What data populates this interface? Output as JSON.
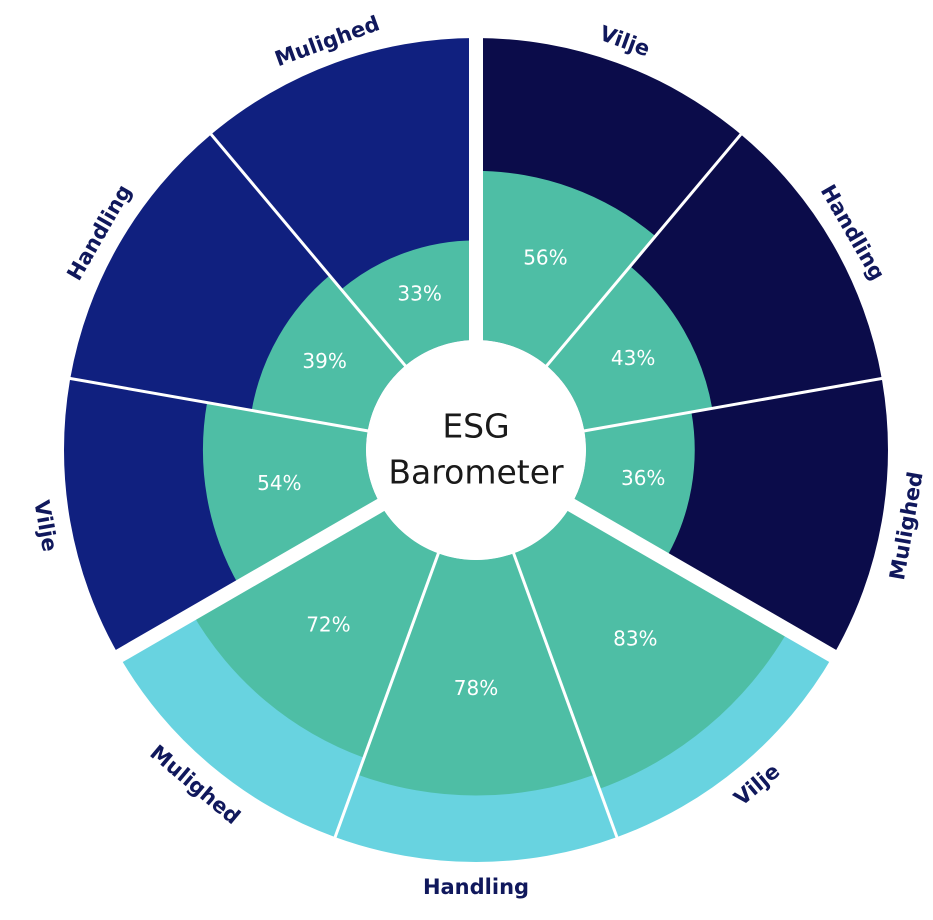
{
  "chart_data": {
    "type": "radial-bar",
    "title": [
      "ESG",
      "Barometer"
    ],
    "categories": [
      "Vilje",
      "Handling",
      "Mulighed",
      "Vilje",
      "Handling",
      "Mulighed",
      "Vilje",
      "Handling",
      "Mulighed"
    ],
    "values": [
      56,
      43,
      36,
      83,
      78,
      72,
      54,
      39,
      33
    ],
    "value_labels": [
      "56%",
      "43%",
      "36%",
      "83%",
      "78%",
      "72%",
      "54%",
      "39%",
      "33%"
    ],
    "color": "#4ebea5",
    "colors": [
      "#0b0c4a",
      "#0b0c4a",
      "#0b0c4a",
      "#68d3e0",
      "#68d3e0",
      "#68d3e0",
      "#10207f",
      "#10207f",
      "#10207f"
    ],
    "ylim": [
      0,
      100
    ]
  }
}
